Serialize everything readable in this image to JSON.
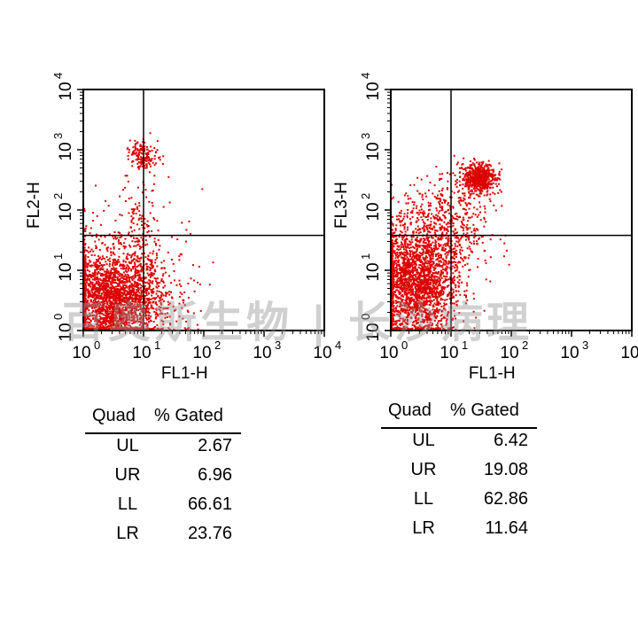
{
  "chart_data": [
    {
      "type": "scatter",
      "xlabel": "FL1-H",
      "ylabel": "FL2-H",
      "x_scale": "log",
      "y_scale": "log",
      "xlim": [
        1,
        10000
      ],
      "ylim": [
        1,
        10000
      ],
      "x_ticks": [
        "10",
        "10",
        "10",
        "10",
        "10"
      ],
      "x_tick_exponents": [
        "0",
        "1",
        "2",
        "3",
        "4"
      ],
      "y_ticks": [
        "10",
        "10",
        "10",
        "10",
        "10"
      ],
      "y_tick_exponents": [
        "0",
        "1",
        "2",
        "3",
        "4"
      ],
      "quadrant_gate": {
        "x": 10,
        "y": 38
      },
      "point_color": "#dd0000",
      "populations": [
        {
          "center": [
            3,
            3
          ],
          "spread": [
            0.45,
            0.4
          ],
          "count": 2600
        },
        {
          "center": [
            10,
            800
          ],
          "spread": [
            0.12,
            0.12
          ],
          "count": 150
        },
        {
          "center": [
            9,
            60
          ],
          "spread": [
            0.12,
            0.55
          ],
          "count": 120
        },
        {
          "center": [
            4,
            15
          ],
          "spread": [
            0.55,
            0.55
          ],
          "count": 220
        }
      ],
      "stats": {
        "headers": [
          "Quad",
          "% Gated"
        ],
        "rows": [
          {
            "quad": "UL",
            "value": "2.67"
          },
          {
            "quad": "UR",
            "value": "6.96"
          },
          {
            "quad": "LL",
            "value": "66.61"
          },
          {
            "quad": "LR",
            "value": "23.76"
          }
        ]
      }
    },
    {
      "type": "scatter",
      "xlabel": "FL1-H",
      "ylabel": "FL3-H",
      "x_scale": "log",
      "y_scale": "log",
      "xlim": [
        1,
        10000
      ],
      "ylim": [
        1,
        10000
      ],
      "x_ticks": [
        "10",
        "10",
        "10",
        "10",
        "10"
      ],
      "x_tick_exponents": [
        "0",
        "1",
        "2",
        "3",
        "4"
      ],
      "y_ticks": [
        "10",
        "10",
        "10",
        "10",
        "10"
      ],
      "y_tick_exponents": [
        "0",
        "1",
        "2",
        "3",
        "4"
      ],
      "quadrant_gate": {
        "x": 10,
        "y": 38
      },
      "point_color": "#dd0000",
      "populations": [
        {
          "center": [
            2.5,
            6
          ],
          "spread": [
            0.35,
            0.45
          ],
          "count": 2300
        },
        {
          "center": [
            30,
            330
          ],
          "spread": [
            0.13,
            0.12
          ],
          "count": 600
        },
        {
          "center": [
            8,
            50
          ],
          "spread": [
            0.35,
            0.45
          ],
          "count": 600
        }
      ],
      "stats": {
        "headers": [
          "Quad",
          "% Gated"
        ],
        "rows": [
          {
            "quad": "UL",
            "value": "6.42"
          },
          {
            "quad": "UR",
            "value": "19.08"
          },
          {
            "quad": "LL",
            "value": "62.86"
          },
          {
            "quad": "LR",
            "value": "11.64"
          }
        ]
      }
    }
  ],
  "watermark": "百奥斯生物 | 长沙病理"
}
